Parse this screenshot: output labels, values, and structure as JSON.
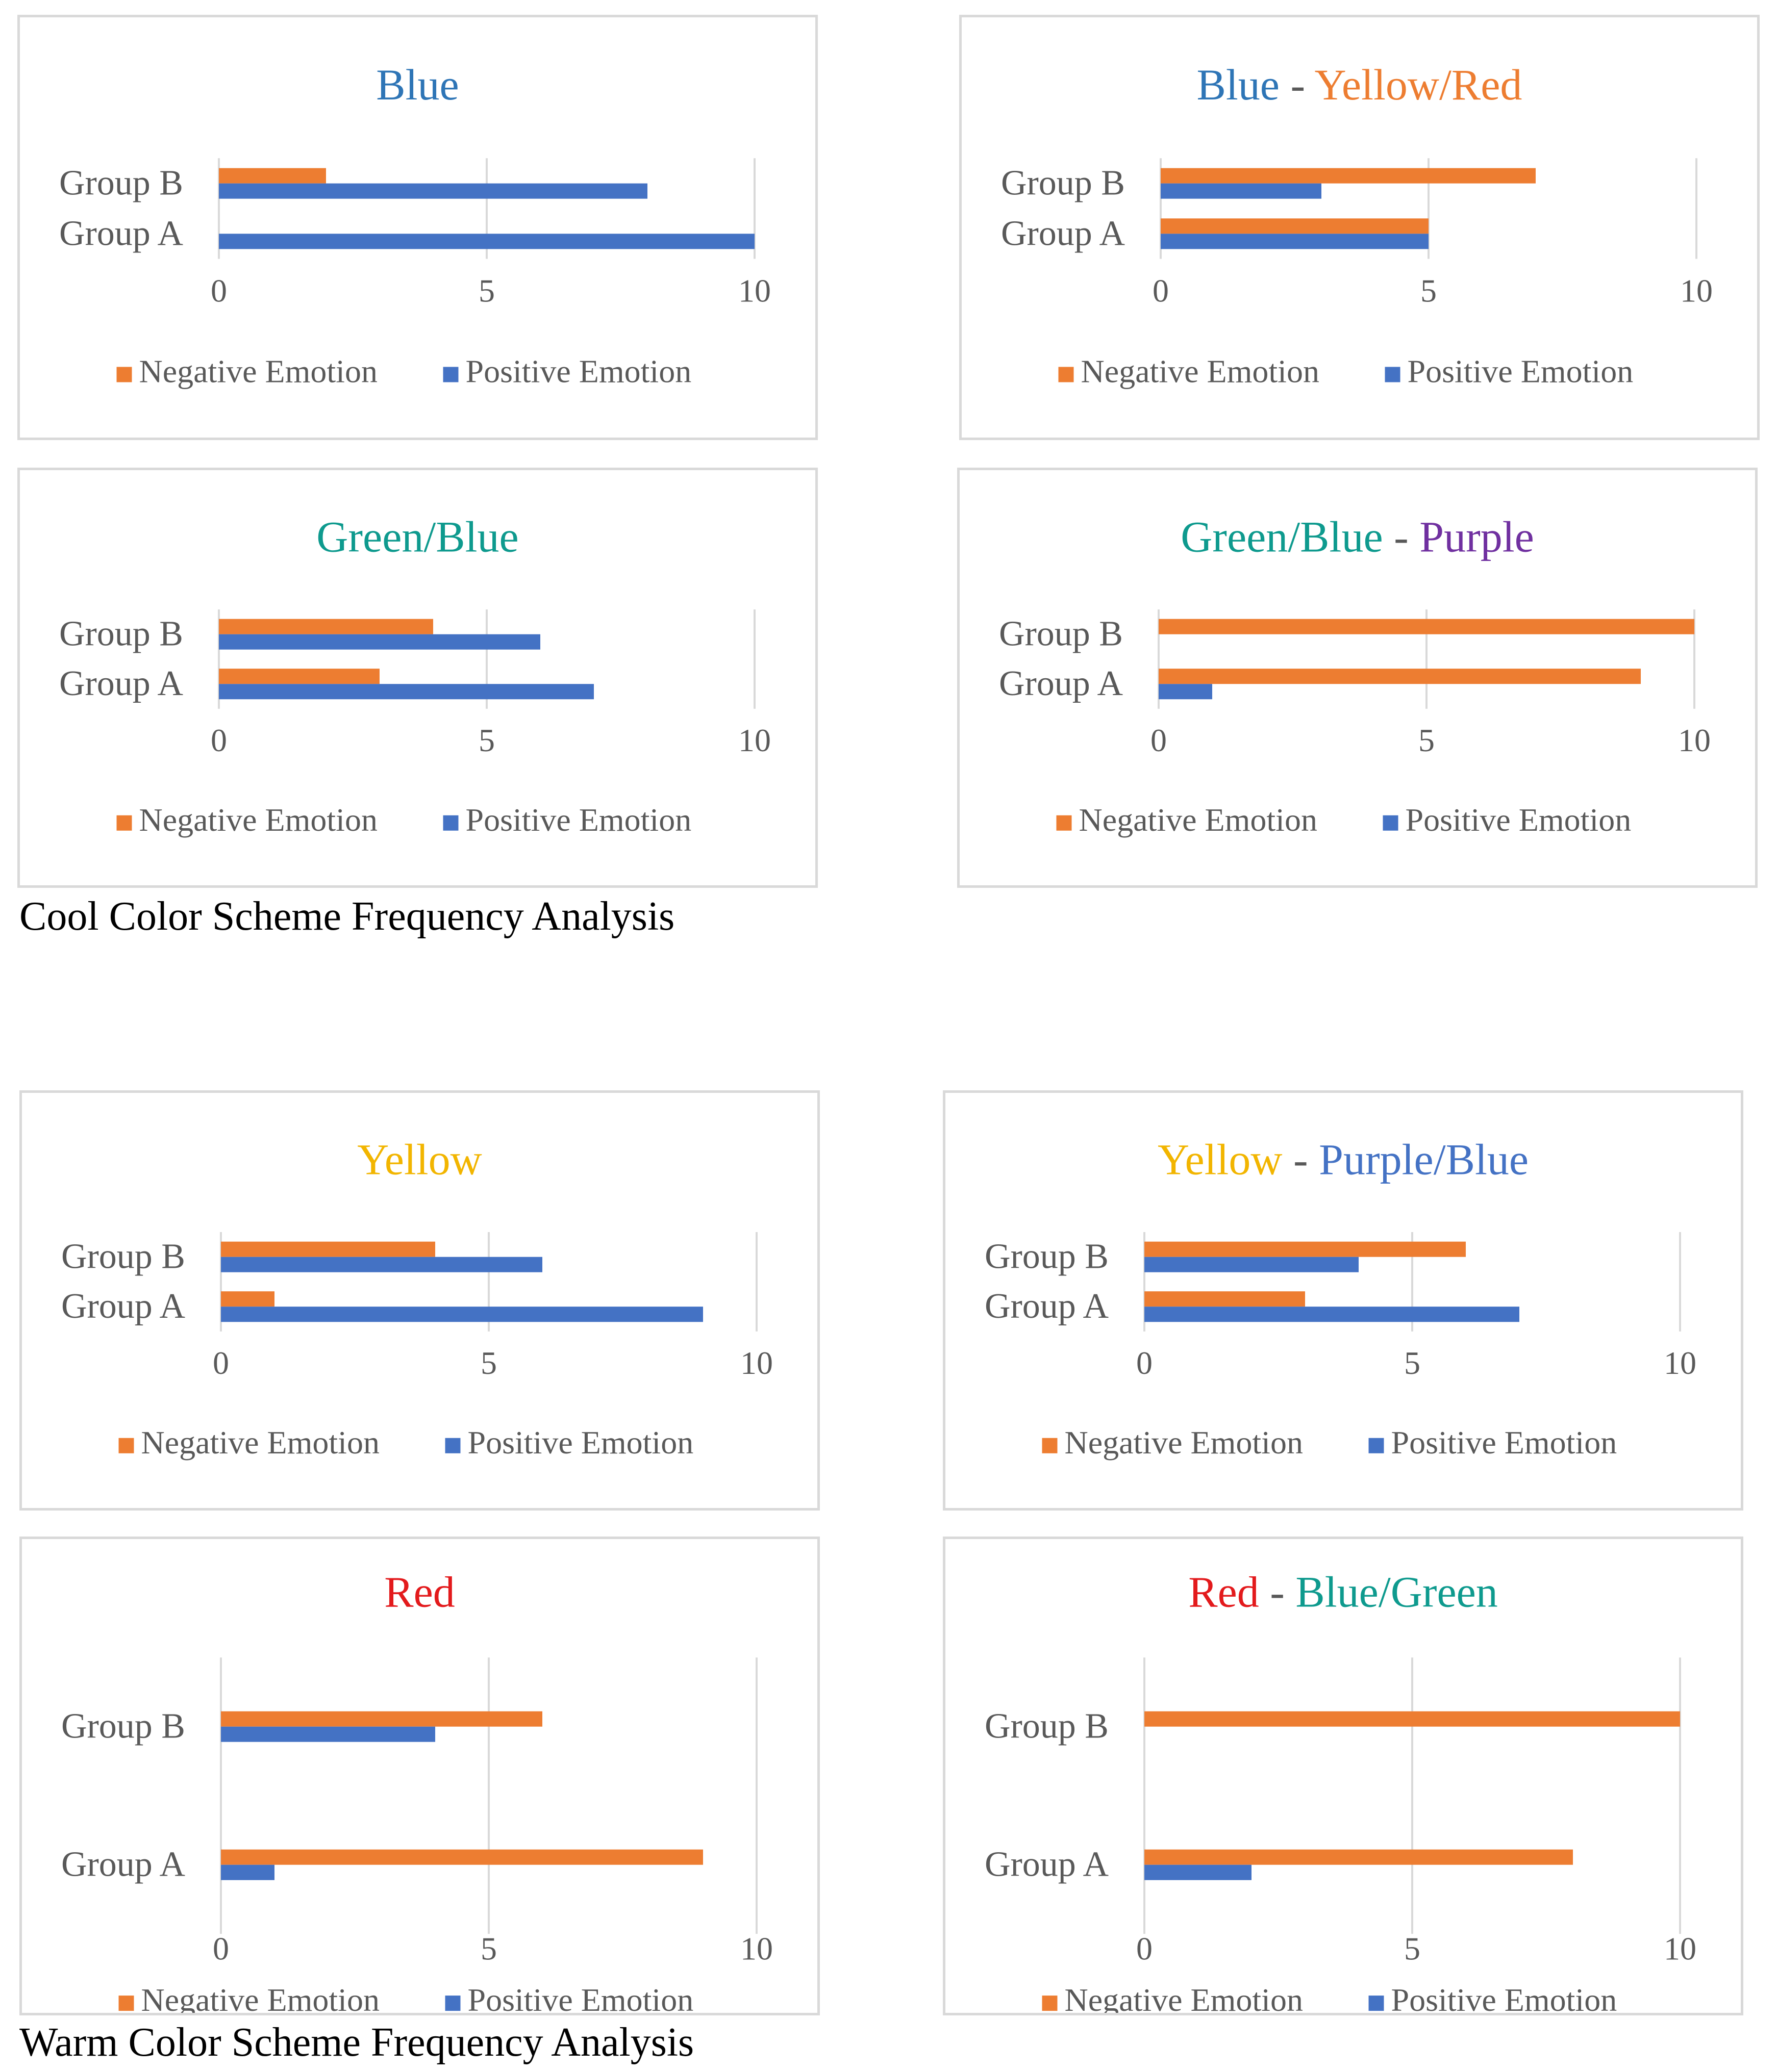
{
  "colors": {
    "negative": "#ED7D31",
    "positive": "#4472C4",
    "gridline": "#d9d9d9",
    "axis_text": "#595959",
    "panel_border": "#d9d9d9",
    "title_separator": "#595959"
  },
  "sections": [
    {
      "caption": "Cool Color Scheme Frequency Analysis"
    },
    {
      "caption": "Warm Color Scheme Frequency Analysis"
    }
  ],
  "chart_data": [
    {
      "type": "bar",
      "orientation": "horizontal",
      "title": "Blue",
      "title_parts": [
        {
          "text": "Blue",
          "color": "#2E75B6"
        }
      ],
      "categories": [
        "Group A",
        "Group B"
      ],
      "series": [
        {
          "name": "Negative Emotion",
          "values": [
            0,
            2
          ]
        },
        {
          "name": "Positive Emotion",
          "values": [
            10,
            8
          ]
        }
      ],
      "xlim": [
        0,
        10
      ],
      "x_ticks": [
        "0",
        "5",
        "10"
      ],
      "grid": true,
      "legend": "bottom"
    },
    {
      "type": "bar",
      "orientation": "horizontal",
      "title": "Blue - Yellow/Red",
      "title_parts": [
        {
          "text": "Blue",
          "color": "#2E75B6"
        },
        {
          "text": " - ",
          "color": "#595959"
        },
        {
          "text": "Yellow/Red",
          "color": "#ED7D31"
        }
      ],
      "categories": [
        "Group A",
        "Group B"
      ],
      "series": [
        {
          "name": "Negative Emotion",
          "values": [
            5,
            7
          ]
        },
        {
          "name": "Positive Emotion",
          "values": [
            5,
            3
          ]
        }
      ],
      "xlim": [
        0,
        10
      ],
      "x_ticks": [
        "0",
        "5",
        "10"
      ],
      "grid": true,
      "legend": "bottom"
    },
    {
      "type": "bar",
      "orientation": "horizontal",
      "title": "Green/Blue",
      "title_parts": [
        {
          "text": "Green/Blue",
          "color": "#0E9A8E"
        }
      ],
      "categories": [
        "Group A",
        "Group B"
      ],
      "series": [
        {
          "name": "Negative Emotion",
          "values": [
            3,
            4
          ]
        },
        {
          "name": "Positive Emotion",
          "values": [
            7,
            6
          ]
        }
      ],
      "xlim": [
        0,
        10
      ],
      "x_ticks": [
        "0",
        "5",
        "10"
      ],
      "grid": true,
      "legend": "bottom"
    },
    {
      "type": "bar",
      "orientation": "horizontal",
      "title": "Green/Blue - Purple",
      "title_parts": [
        {
          "text": "Green/Blue",
          "color": "#0E9A8E"
        },
        {
          "text": " - ",
          "color": "#595959"
        },
        {
          "text": "Purple",
          "color": "#7030A0"
        }
      ],
      "categories": [
        "Group A",
        "Group B"
      ],
      "series": [
        {
          "name": "Negative Emotion",
          "values": [
            9,
            10
          ]
        },
        {
          "name": "Positive Emotion",
          "values": [
            1,
            0
          ]
        }
      ],
      "xlim": [
        0,
        10
      ],
      "x_ticks": [
        "0",
        "5",
        "10"
      ],
      "grid": true,
      "legend": "bottom"
    },
    {
      "type": "bar",
      "orientation": "horizontal",
      "title": "Yellow",
      "title_parts": [
        {
          "text": "Yellow",
          "color": "#F2B500"
        }
      ],
      "categories": [
        "Group A",
        "Group B"
      ],
      "series": [
        {
          "name": "Negative Emotion",
          "values": [
            1,
            4
          ]
        },
        {
          "name": "Positive Emotion",
          "values": [
            9,
            6
          ]
        }
      ],
      "xlim": [
        0,
        10
      ],
      "x_ticks": [
        "0",
        "5",
        "10"
      ],
      "grid": true,
      "legend": "bottom"
    },
    {
      "type": "bar",
      "orientation": "horizontal",
      "title": "Yellow - Purple/Blue",
      "title_parts": [
        {
          "text": "Yellow",
          "color": "#F2B500"
        },
        {
          "text": " - ",
          "color": "#595959"
        },
        {
          "text": "Purple/Blue",
          "color": "#4472C4"
        }
      ],
      "categories": [
        "Group A",
        "Group B"
      ],
      "series": [
        {
          "name": "Negative Emotion",
          "values": [
            3,
            6
          ]
        },
        {
          "name": "Positive Emotion",
          "values": [
            7,
            4
          ]
        }
      ],
      "xlim": [
        0,
        10
      ],
      "x_ticks": [
        "0",
        "5",
        "10"
      ],
      "grid": true,
      "legend": "bottom"
    },
    {
      "type": "bar",
      "orientation": "horizontal",
      "title": "Red",
      "title_parts": [
        {
          "text": "Red",
          "color": "#E31A1C"
        }
      ],
      "categories": [
        "Group A",
        "Group B"
      ],
      "series": [
        {
          "name": "Negative Emotion",
          "values": [
            9,
            6
          ]
        },
        {
          "name": "Positive Emotion",
          "values": [
            1,
            4
          ]
        }
      ],
      "xlim": [
        0,
        10
      ],
      "x_ticks": [
        "0",
        "5",
        "10"
      ],
      "grid": true,
      "legend": "bottom"
    },
    {
      "type": "bar",
      "orientation": "horizontal",
      "title": "Red - Blue/Green",
      "title_parts": [
        {
          "text": "Red",
          "color": "#E31A1C"
        },
        {
          "text": " - ",
          "color": "#595959"
        },
        {
          "text": "Blue/Green",
          "color": "#0E9A8E"
        }
      ],
      "categories": [
        "Group A",
        "Group B"
      ],
      "series": [
        {
          "name": "Negative Emotion",
          "values": [
            8,
            10
          ]
        },
        {
          "name": "Positive Emotion",
          "values": [
            2,
            0
          ]
        }
      ],
      "xlim": [
        0,
        10
      ],
      "x_ticks": [
        "0",
        "5",
        "10"
      ],
      "grid": true,
      "legend": "bottom"
    }
  ]
}
